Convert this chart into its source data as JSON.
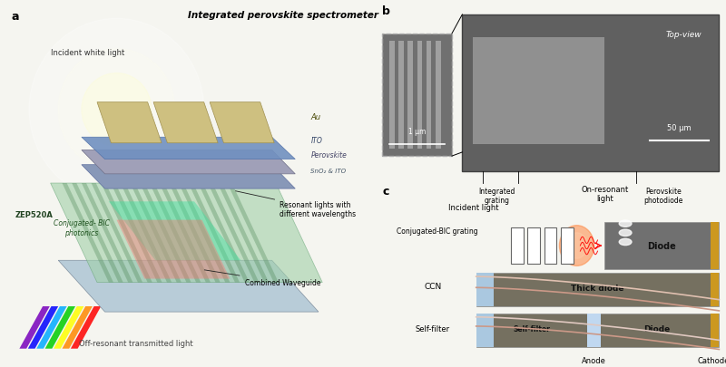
{
  "title": "Integrated perovskite spectrometer",
  "panel_a_label": "a",
  "panel_b_label": "b",
  "panel_c_label": "c",
  "labels_a": {
    "incident_white_light": "Incident white light",
    "ZEP520A": "ZEP520A",
    "conjugated_BIC": "Conjugated- BIC\nphotonics",
    "off_resonant": "Off-resonant transmitted light",
    "Au": "Au",
    "ITO": "ITO",
    "Perovskite": "Perovskite",
    "SnO2_ITO": "SnO₂ & ITO",
    "resonant": "Resonant lights with\ndifferent wavelengths",
    "combined_waveguide": "Combined Waveguide"
  },
  "panel_b": {
    "scale_1um": "1 μm",
    "scale_50um": "50 μm",
    "top_view": "Top-view",
    "integrated_grating": "Integrated\ngrating",
    "perovskite_photodiode": "Perovskite\nphotodiode"
  },
  "panel_c": {
    "on_resonant": "On-resonant\nlight",
    "incident_light": "Incident light",
    "conjugated_BIC_grating": "Conjugated-BIC grating",
    "diode": "Diode",
    "CCN": "CCN",
    "thick_diode": "Thick diode",
    "self_filter_label": "Self-filter",
    "self_filter": "Self-filter",
    "diode2": "Diode",
    "anode": "Anode",
    "cathode": "Cathode"
  },
  "colors": {
    "bg": "#f5f5f0",
    "au_color": "#c8b870",
    "ito_color": "#8090b0",
    "perovskite_color": "#9090a8",
    "sno2_color": "#7888a0",
    "zep_color": "#90c8a0",
    "waveguide_color": "#b0c8d8",
    "panel_b_bg": "#606060",
    "panel_b_inner": "#909090",
    "grating_bg": "#787878",
    "diode_dark": "#707070",
    "diode_gold": "#cc9820",
    "anode_blue": "#aac8e0",
    "body_dark": "#787060"
  }
}
